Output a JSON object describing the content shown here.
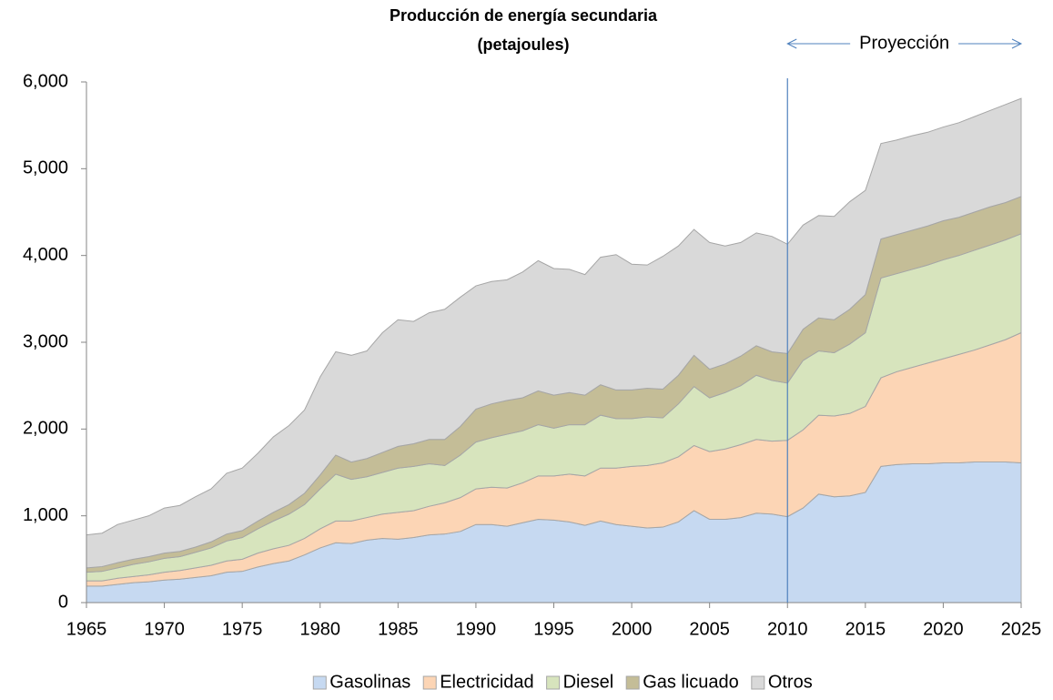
{
  "chart_data": {
    "type": "stacked_area",
    "title": "Producción de energía secundaria",
    "subtitle": "(petajoules)",
    "annotation": {
      "text": "Proyección",
      "x": 2010
    },
    "x": [
      1965,
      1966,
      1967,
      1968,
      1969,
      1970,
      1971,
      1972,
      1973,
      1974,
      1975,
      1976,
      1977,
      1978,
      1979,
      1980,
      1981,
      1982,
      1983,
      1984,
      1985,
      1986,
      1987,
      1988,
      1989,
      1990,
      1991,
      1992,
      1993,
      1994,
      1995,
      1996,
      1997,
      1998,
      1999,
      2000,
      2001,
      2002,
      2003,
      2004,
      2005,
      2006,
      2007,
      2008,
      2009,
      2010,
      2011,
      2012,
      2013,
      2014,
      2015,
      2016,
      2017,
      2018,
      2019,
      2020,
      2021,
      2022,
      2023,
      2024,
      2025
    ],
    "xlim": [
      1965,
      2025
    ],
    "xticks": [
      1965,
      1970,
      1975,
      1980,
      1985,
      1990,
      1995,
      2000,
      2005,
      2010,
      2015,
      2020,
      2025
    ],
    "ylim": [
      0,
      6000
    ],
    "yticks": [
      0,
      {
        "value": 1000,
        "label": "1,000"
      },
      {
        "value": 2000,
        "label": "2,000"
      },
      {
        "value": 3000,
        "label": "3,000"
      },
      {
        "value": 4000,
        "label": "4,000"
      },
      {
        "value": 5000,
        "label": "5,000"
      },
      {
        "value": 6000,
        "label": "6,000"
      }
    ],
    "legend": "bottom",
    "series": [
      {
        "name": "Gasolinas",
        "color": "#c6d9f1",
        "values": [
          190,
          190,
          210,
          230,
          240,
          260,
          270,
          290,
          310,
          350,
          360,
          410,
          450,
          480,
          550,
          630,
          690,
          680,
          720,
          740,
          730,
          750,
          780,
          790,
          820,
          900,
          900,
          880,
          920,
          960,
          950,
          930,
          890,
          940,
          900,
          880,
          860,
          870,
          930,
          1060,
          960,
          960,
          980,
          1030,
          1020,
          990,
          1090,
          1250,
          1220,
          1230,
          1270,
          1570,
          1590,
          1600,
          1600,
          1610,
          1610,
          1620,
          1620,
          1620,
          1610
        ]
      },
      {
        "name": "Electricidad",
        "color": "#fcd5b5",
        "values": [
          60,
          60,
          70,
          70,
          80,
          90,
          100,
          110,
          120,
          130,
          140,
          160,
          170,
          180,
          190,
          220,
          250,
          260,
          260,
          280,
          310,
          310,
          330,
          360,
          390,
          410,
          430,
          440,
          460,
          500,
          510,
          550,
          570,
          610,
          650,
          690,
          720,
          740,
          750,
          750,
          780,
          810,
          840,
          850,
          840,
          880,
          900,
          910,
          930,
          950,
          990,
          1020,
          1070,
          1110,
          1160,
          1200,
          1250,
          1290,
          1350,
          1410,
          1500
        ]
      },
      {
        "name": "Diesel",
        "color": "#d7e4bd",
        "values": [
          100,
          110,
          120,
          140,
          150,
          160,
          160,
          180,
          200,
          230,
          250,
          280,
          320,
          360,
          390,
          460,
          540,
          480,
          470,
          480,
          510,
          510,
          490,
          430,
          490,
          540,
          570,
          620,
          600,
          590,
          550,
          570,
          590,
          610,
          570,
          550,
          560,
          520,
          610,
          680,
          620,
          650,
          680,
          740,
          700,
          660,
          800,
          740,
          730,
          800,
          850,
          1150,
          1130,
          1130,
          1130,
          1140,
          1140,
          1150,
          1150,
          1150,
          1140
        ]
      },
      {
        "name": "Gas licuado",
        "color": "#c4bd97",
        "values": [
          50,
          55,
          60,
          60,
          60,
          60,
          60,
          60,
          70,
          80,
          80,
          90,
          100,
          110,
          130,
          160,
          220,
          200,
          210,
          230,
          250,
          260,
          280,
          300,
          330,
          380,
          390,
          390,
          380,
          390,
          380,
          370,
          340,
          350,
          330,
          330,
          330,
          330,
          330,
          360,
          330,
          330,
          340,
          340,
          330,
          340,
          360,
          380,
          380,
          400,
          440,
          450,
          450,
          450,
          450,
          450,
          440,
          440,
          440,
          430,
          430
        ]
      },
      {
        "name": "Otros",
        "color": "#d9d9d9",
        "values": [
          380,
          385,
          440,
          450,
          470,
          520,
          530,
          580,
          610,
          700,
          720,
          780,
          870,
          910,
          960,
          1130,
          1190,
          1230,
          1240,
          1380,
          1460,
          1410,
          1460,
          1500,
          1490,
          1420,
          1410,
          1390,
          1450,
          1500,
          1460,
          1420,
          1390,
          1470,
          1560,
          1450,
          1420,
          1530,
          1490,
          1450,
          1460,
          1360,
          1310,
          1300,
          1330,
          1260,
          1200,
          1180,
          1190,
          1240,
          1200,
          1100,
          1090,
          1090,
          1080,
          1080,
          1090,
          1100,
          1110,
          1130,
          1130
        ]
      }
    ]
  }
}
